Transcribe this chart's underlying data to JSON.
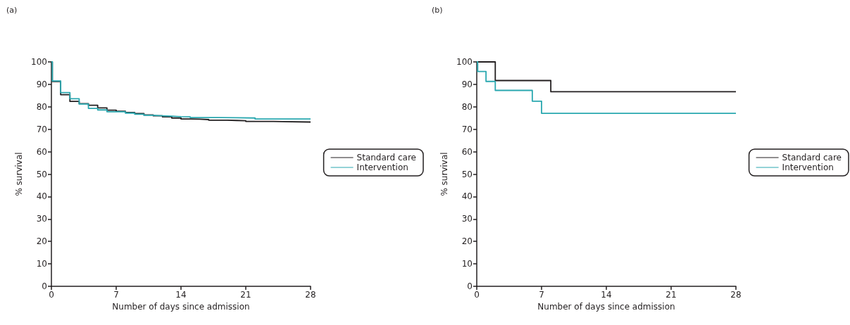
{
  "chart_data": [
    {
      "type": "step",
      "title": "(a)",
      "xlabel": "Number of days since admission",
      "ylabel": "% survival",
      "xlim": [
        0,
        28
      ],
      "xticks": [
        0,
        7,
        14,
        21,
        28
      ],
      "ylim": [
        0,
        100
      ],
      "yticks": [
        0,
        10,
        20,
        30,
        40,
        50,
        60,
        70,
        80,
        90,
        100
      ],
      "grid": false,
      "legend": "right",
      "marker": "none",
      "line_style": "solid",
      "series": [
        {
          "name": "Standard care",
          "color": "#231f20",
          "x": [
            0,
            0.1,
            1,
            2,
            3,
            4,
            5,
            6,
            7,
            8,
            9,
            10,
            11,
            12,
            13,
            14,
            15,
            16,
            17,
            18,
            19,
            20,
            21,
            22,
            23,
            24,
            25,
            28
          ],
          "values": [
            100,
            91.3,
            85.4,
            82.4,
            81.4,
            80.7,
            79.5,
            78.5,
            78,
            77.5,
            77,
            76.4,
            76,
            75.5,
            75,
            74.6,
            74.5,
            74.3,
            74,
            74,
            73.9,
            73.8,
            73.5,
            73.5,
            73.5,
            73.4,
            73.2,
            73.2
          ]
        },
        {
          "name": "Intervention",
          "color": "#2aa8b0",
          "x": [
            0,
            0.1,
            1,
            2,
            3,
            4,
            5,
            6,
            8,
            9,
            10,
            11,
            12,
            13,
            14,
            15,
            18,
            20,
            22,
            28
          ],
          "values": [
            100,
            91.5,
            86.3,
            83.6,
            81.2,
            79.3,
            78.6,
            77.8,
            77.2,
            76.7,
            76.2,
            76,
            75.8,
            75.6,
            75.5,
            75.2,
            75.1,
            75,
            74.6,
            74.6
          ]
        }
      ]
    },
    {
      "type": "step",
      "title": "(b)",
      "xlabel": "Number of days since admission",
      "ylabel": "% survival",
      "xlim": [
        0,
        28
      ],
      "xticks": [
        0,
        7,
        14,
        21,
        28
      ],
      "ylim": [
        0,
        100
      ],
      "yticks": [
        0,
        10,
        20,
        30,
        40,
        50,
        60,
        70,
        80,
        90,
        100
      ],
      "grid": false,
      "legend": "right",
      "marker": "none",
      "line_style": "solid",
      "series": [
        {
          "name": "Standard care",
          "color": "#231f20",
          "x": [
            0,
            2,
            8,
            28
          ],
          "values": [
            100,
            91.7,
            86.7,
            86.7
          ]
        },
        {
          "name": "Intervention",
          "color": "#2aa8b0",
          "x": [
            0,
            0.1,
            1,
            2,
            6,
            7,
            28
          ],
          "values": [
            100,
            95.7,
            91.3,
            87.3,
            82.5,
            77.1,
            77.1
          ]
        }
      ]
    }
  ]
}
